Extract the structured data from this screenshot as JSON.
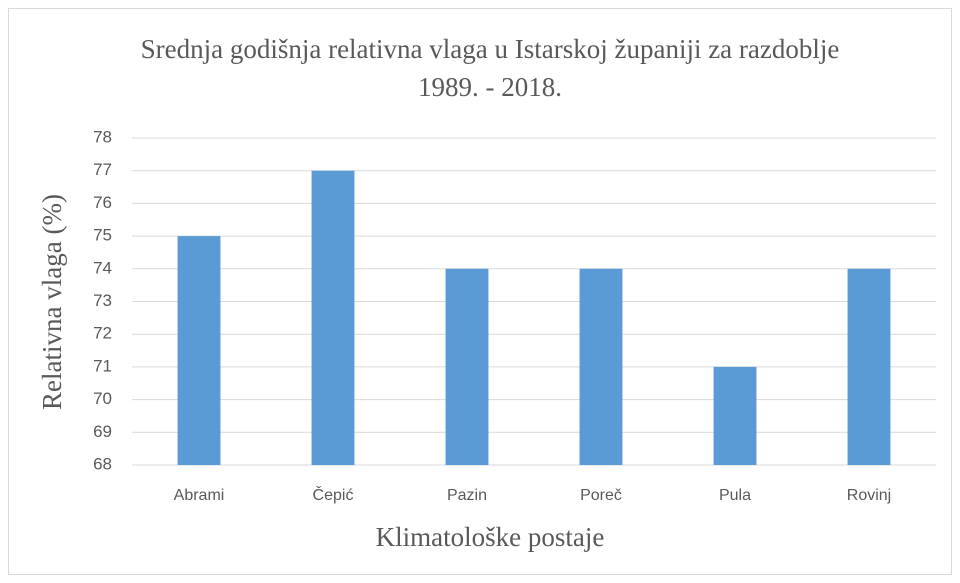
{
  "chart_data": {
    "type": "bar",
    "title": "Srednja godišnja relativna vlaga u Istarskoj županiji za razdoblje 1989. - 2018.",
    "x_label": "Klimatološke postaje",
    "y_label": "Relativna vlaga (%)",
    "categories": [
      "Abrami",
      "Čepić",
      "Pazin",
      "Poreč",
      "Pula",
      "Rovinj"
    ],
    "values": [
      75,
      77,
      74,
      74,
      71,
      74
    ],
    "color": "#5b9bd5",
    "ylim": [
      68,
      78
    ],
    "yticks": [
      68,
      69,
      70,
      71,
      72,
      73,
      74,
      75,
      76,
      77,
      78
    ],
    "grid": true
  }
}
